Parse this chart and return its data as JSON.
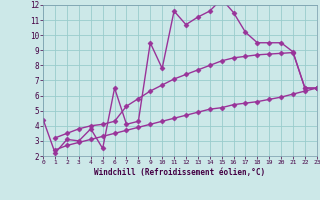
{
  "line1_x": [
    0,
    1,
    2,
    3,
    4,
    5,
    6,
    7,
    8,
    9,
    10,
    11,
    12,
    13,
    14,
    15,
    16,
    17,
    18,
    19,
    20,
    21,
    22,
    23
  ],
  "line1_y": [
    4.4,
    2.2,
    3.1,
    3.0,
    3.8,
    2.5,
    6.5,
    4.1,
    4.3,
    9.5,
    7.8,
    11.6,
    10.7,
    11.2,
    11.6,
    12.4,
    11.5,
    10.2,
    9.5,
    9.5,
    9.5,
    8.9,
    6.5,
    6.5
  ],
  "line2_x": [
    1,
    2,
    3,
    4,
    5,
    6,
    7,
    8,
    9,
    10,
    11,
    12,
    13,
    14,
    15,
    16,
    17,
    18,
    19,
    20,
    21,
    22,
    23
  ],
  "line2_y": [
    3.2,
    3.5,
    3.8,
    4.0,
    4.1,
    4.3,
    5.3,
    5.8,
    6.3,
    6.7,
    7.1,
    7.4,
    7.7,
    8.0,
    8.3,
    8.5,
    8.6,
    8.7,
    8.75,
    8.8,
    8.85,
    6.5,
    6.5
  ],
  "line3_x": [
    1,
    2,
    3,
    4,
    5,
    6,
    7,
    8,
    9,
    10,
    11,
    12,
    13,
    14,
    15,
    16,
    17,
    18,
    19,
    20,
    21,
    22,
    23
  ],
  "line3_y": [
    2.4,
    2.7,
    2.9,
    3.1,
    3.3,
    3.5,
    3.7,
    3.9,
    4.1,
    4.3,
    4.5,
    4.7,
    4.9,
    5.1,
    5.2,
    5.4,
    5.5,
    5.6,
    5.75,
    5.9,
    6.1,
    6.3,
    6.5
  ],
  "color": "#993399",
  "bg_color": "#cce8e8",
  "grid_color": "#99cccc",
  "xlabel": "Windchill (Refroidissement éolien,°C)",
  "xlim": [
    0,
    23
  ],
  "ylim": [
    2,
    12
  ],
  "xticks": [
    0,
    1,
    2,
    3,
    4,
    5,
    6,
    7,
    8,
    9,
    10,
    11,
    12,
    13,
    14,
    15,
    16,
    17,
    18,
    19,
    20,
    21,
    22,
    23
  ],
  "yticks": [
    2,
    3,
    4,
    5,
    6,
    7,
    8,
    9,
    10,
    11,
    12
  ],
  "marker": "D",
  "markersize": 2.5,
  "linewidth": 1.0
}
